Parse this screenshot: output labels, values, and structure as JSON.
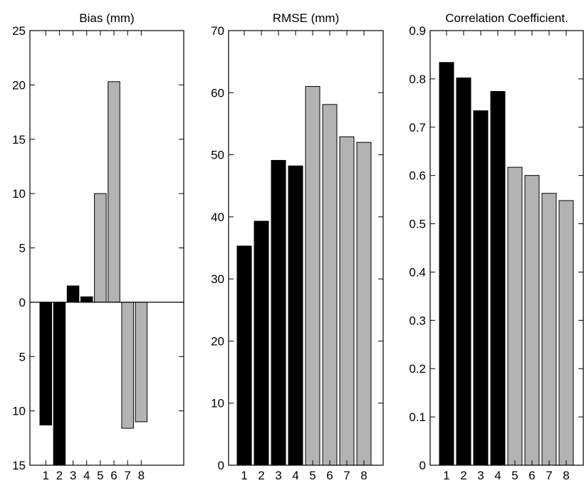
{
  "chart_data": [
    {
      "type": "bar",
      "title": "Bias (mm)",
      "categories": [
        "1",
        "2",
        "3",
        "4",
        "5",
        "6",
        "7",
        "8"
      ],
      "values": [
        -11.3,
        -15,
        1.5,
        0.5,
        10,
        20.3,
        -11.6,
        -11
      ],
      "colors": [
        "#000000",
        "#000000",
        "#000000",
        "#000000",
        "#b3b3b3",
        "#b3b3b3",
        "#b3b3b3",
        "#b3b3b3"
      ],
      "ylim": [
        -15,
        25
      ],
      "yticks": [
        -15,
        -10,
        -5,
        0,
        5,
        10,
        15,
        20,
        25
      ],
      "ytick_labels": [
        "15",
        "10",
        "5",
        "0",
        "5",
        "10",
        "15",
        "20",
        "25"
      ],
      "zero_line": true
    },
    {
      "type": "bar",
      "title": "RMSE (mm)",
      "categories": [
        "1",
        "2",
        "3",
        "4",
        "5",
        "6",
        "7",
        "8"
      ],
      "values": [
        35.3,
        39.3,
        49.1,
        48.2,
        61,
        58.1,
        52.9,
        52
      ],
      "colors": [
        "#000000",
        "#000000",
        "#000000",
        "#000000",
        "#b3b3b3",
        "#b3b3b3",
        "#b3b3b3",
        "#b3b3b3"
      ],
      "ylim": [
        0,
        70
      ],
      "yticks": [
        0,
        10,
        20,
        30,
        40,
        50,
        60,
        70
      ],
      "ytick_labels": [
        "0",
        "10",
        "20",
        "30",
        "40",
        "50",
        "60",
        "70"
      ],
      "zero_line": false
    },
    {
      "type": "bar",
      "title": "Correlation Coefficient.",
      "categories": [
        "1",
        "2",
        "3",
        "4",
        "5",
        "6",
        "7",
        "8"
      ],
      "values": [
        0.834,
        0.802,
        0.734,
        0.774,
        0.617,
        0.6,
        0.563,
        0.548
      ],
      "colors": [
        "#000000",
        "#000000",
        "#000000",
        "#000000",
        "#b3b3b3",
        "#b3b3b3",
        "#b3b3b3",
        "#b3b3b3"
      ],
      "ylim": [
        0,
        0.9
      ],
      "yticks": [
        0,
        0.1,
        0.2,
        0.3,
        0.4,
        0.5,
        0.6,
        0.7,
        0.8,
        0.9
      ],
      "ytick_labels": [
        "0",
        "0.1",
        "0.2",
        "0.3",
        "0.4",
        "0.5",
        "0.6",
        "0.7",
        "0.8",
        "0.9"
      ],
      "zero_line": false
    }
  ]
}
